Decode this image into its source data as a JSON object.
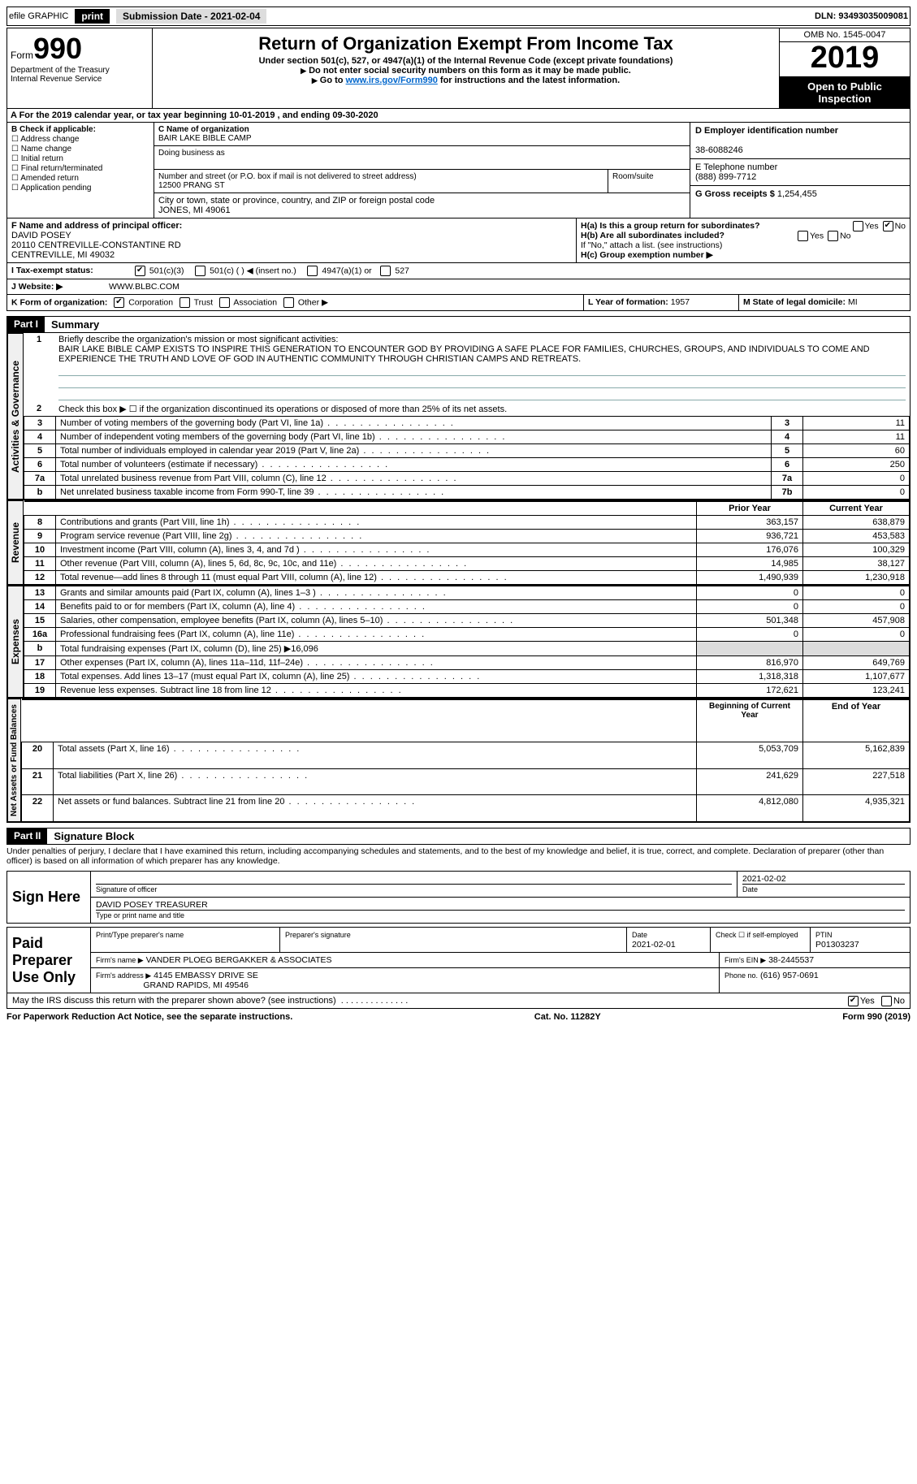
{
  "topbar": {
    "efile_label": "efile GRAPHIC",
    "print_btn": "print",
    "submission_label": "Submission Date - 2021-02-04",
    "dln": "DLN: 93493035009081"
  },
  "header": {
    "form_word": "Form",
    "form_num": "990",
    "dept1": "Department of the Treasury",
    "dept2": "Internal Revenue Service",
    "title": "Return of Organization Exempt From Income Tax",
    "subtitle": "Under section 501(c), 527, or 4947(a)(1) of the Internal Revenue Code (except private foundations)",
    "note1": "Do not enter social security numbers on this form as it may be made public.",
    "note2_pre": "Go to ",
    "note2_link": "www.irs.gov/Form990",
    "note2_post": " for instructions and the latest information.",
    "omb": "OMB No. 1545-0047",
    "year": "2019",
    "inspect": "Open to Public Inspection"
  },
  "period": "A For the 2019 calendar year, or tax year beginning 10-01-2019    , and ending 09-30-2020",
  "boxB": {
    "hdr": "B Check if applicable:",
    "items": [
      "Address change",
      "Name change",
      "Initial return",
      "Final return/terminated",
      "Amended return",
      "Application pending"
    ]
  },
  "boxC": {
    "name_lbl": "C Name of organization",
    "name_val": "BAIR LAKE BIBLE CAMP",
    "dba_lbl": "Doing business as",
    "addr_lbl": "Number and street (or P.O. box if mail is not delivered to street address)",
    "room_lbl": "Room/suite",
    "addr_val": "12500 PRANG ST",
    "city_lbl": "City or town, state or province, country, and ZIP or foreign postal code",
    "city_val": "JONES, MI  49061"
  },
  "boxD": {
    "lbl": "D Employer identification number",
    "val": "38-6088246"
  },
  "boxE": {
    "lbl": "E Telephone number",
    "val": "(888) 899-7712"
  },
  "boxG": {
    "lbl": "G Gross receipts $",
    "val": "1,254,455"
  },
  "boxF": {
    "lbl": "F Name and address of principal officer:",
    "name": "DAVID POSEY",
    "addr1": "20110 CENTREVILLE-CONSTANTINE RD",
    "addr2": "CENTREVILLE, MI  49032"
  },
  "boxH": {
    "a": "H(a)  Is this a group return for subordinates?",
    "b": "H(b)  Are all subordinates included?",
    "b_note": "If \"No,\" attach a list. (see instructions)",
    "c": "H(c)  Group exemption number ▶",
    "yes": "Yes",
    "no": "No"
  },
  "rowI": {
    "lbl": "I  Tax-exempt status:",
    "opts": [
      "501(c)(3)",
      "501(c) (  ) ◀ (insert no.)",
      "4947(a)(1) or",
      "527"
    ]
  },
  "rowJ": {
    "lbl": "J  Website: ▶",
    "val": "WWW.BLBC.COM"
  },
  "rowK": {
    "lbl": "K Form of organization:",
    "opts": [
      "Corporation",
      "Trust",
      "Association",
      "Other ▶"
    ]
  },
  "rowL": {
    "lbl": "L Year of formation:",
    "val": "1957"
  },
  "rowM": {
    "lbl": "M State of legal domicile:",
    "val": "MI"
  },
  "part1": {
    "hdr": "Part I",
    "title": "Summary"
  },
  "summary": {
    "l1_lbl": "Briefly describe the organization's mission or most significant activities:",
    "l1_text": "BAIR LAKE BIBLE CAMP EXISTS TO INSPIRE THIS GENERATION TO ENCOUNTER GOD BY PROVIDING A SAFE PLACE FOR FAMILIES, CHURCHES, GROUPS, AND INDIVIDUALS TO COME AND EXPERIENCE THE TRUTH AND LOVE OF GOD IN AUTHENTIC COMMUNITY THROUGH CHRISTIAN CAMPS AND RETREATS.",
    "l2": "Check this box ▶ ☐  if the organization discontinued its operations or disposed of more than 25% of its net assets.",
    "rows_gov": [
      {
        "n": "3",
        "t": "Number of voting members of the governing body (Part VI, line 1a)",
        "c": "3",
        "v": "11"
      },
      {
        "n": "4",
        "t": "Number of independent voting members of the governing body (Part VI, line 1b)",
        "c": "4",
        "v": "11"
      },
      {
        "n": "5",
        "t": "Total number of individuals employed in calendar year 2019 (Part V, line 2a)",
        "c": "5",
        "v": "60"
      },
      {
        "n": "6",
        "t": "Total number of volunteers (estimate if necessary)",
        "c": "6",
        "v": "250"
      },
      {
        "n": "7a",
        "t": "Total unrelated business revenue from Part VIII, column (C), line 12",
        "c": "7a",
        "v": "0"
      },
      {
        "n": "b",
        "t": "Net unrelated business taxable income from Form 990-T, line 39",
        "c": "7b",
        "v": "0"
      }
    ],
    "col_prior": "Prior Year",
    "col_current": "Current Year",
    "rev": [
      {
        "n": "8",
        "t": "Contributions and grants (Part VIII, line 1h)",
        "p": "363,157",
        "c": "638,879"
      },
      {
        "n": "9",
        "t": "Program service revenue (Part VIII, line 2g)",
        "p": "936,721",
        "c": "453,583"
      },
      {
        "n": "10",
        "t": "Investment income (Part VIII, column (A), lines 3, 4, and 7d )",
        "p": "176,076",
        "c": "100,329"
      },
      {
        "n": "11",
        "t": "Other revenue (Part VIII, column (A), lines 5, 6d, 8c, 9c, 10c, and 11e)",
        "p": "14,985",
        "c": "38,127"
      },
      {
        "n": "12",
        "t": "Total revenue—add lines 8 through 11 (must equal Part VIII, column (A), line 12)",
        "p": "1,490,939",
        "c": "1,230,918"
      }
    ],
    "exp": [
      {
        "n": "13",
        "t": "Grants and similar amounts paid (Part IX, column (A), lines 1–3 )",
        "p": "0",
        "c": "0"
      },
      {
        "n": "14",
        "t": "Benefits paid to or for members (Part IX, column (A), line 4)",
        "p": "0",
        "c": "0"
      },
      {
        "n": "15",
        "t": "Salaries, other compensation, employee benefits (Part IX, column (A), lines 5–10)",
        "p": "501,348",
        "c": "457,908"
      },
      {
        "n": "16a",
        "t": "Professional fundraising fees (Part IX, column (A), line 11e)",
        "p": "0",
        "c": "0"
      },
      {
        "n": "b",
        "t": "Total fundraising expenses (Part IX, column (D), line 25) ▶16,096",
        "p": "",
        "c": "",
        "shade": true
      },
      {
        "n": "17",
        "t": "Other expenses (Part IX, column (A), lines 11a–11d, 11f–24e)",
        "p": "816,970",
        "c": "649,769"
      },
      {
        "n": "18",
        "t": "Total expenses. Add lines 13–17 (must equal Part IX, column (A), line 25)",
        "p": "1,318,318",
        "c": "1,107,677"
      },
      {
        "n": "19",
        "t": "Revenue less expenses. Subtract line 18 from line 12",
        "p": "172,621",
        "c": "123,241"
      }
    ],
    "col_beg": "Beginning of Current Year",
    "col_end": "End of Year",
    "na": [
      {
        "n": "20",
        "t": "Total assets (Part X, line 16)",
        "p": "5,053,709",
        "c": "5,162,839"
      },
      {
        "n": "21",
        "t": "Total liabilities (Part X, line 26)",
        "p": "241,629",
        "c": "227,518"
      },
      {
        "n": "22",
        "t": "Net assets or fund balances. Subtract line 21 from line 20",
        "p": "4,812,080",
        "c": "4,935,321"
      }
    ],
    "side_gov": "Activities & Governance",
    "side_rev": "Revenue",
    "side_exp": "Expenses",
    "side_na": "Net Assets or Fund Balances"
  },
  "part2": {
    "hdr": "Part II",
    "title": "Signature Block",
    "decl": "Under penalties of perjury, I declare that I have examined this return, including accompanying schedules and statements, and to the best of my knowledge and belief, it is true, correct, and complete. Declaration of preparer (other than officer) is based on all information of which preparer has any knowledge."
  },
  "sign": {
    "here": "Sign Here",
    "sig_officer": "Signature of officer",
    "date_lbl": "Date",
    "date_val": "2021-02-02",
    "name": "DAVID POSEY TREASURER",
    "name_lbl": "Type or print name and title"
  },
  "paid": {
    "title": "Paid Preparer Use Only",
    "h1": "Print/Type preparer's name",
    "h2": "Preparer's signature",
    "h3": "Date",
    "h3v": "2021-02-01",
    "h4": "Check ☐ if self-employed",
    "h5": "PTIN",
    "h5v": "P01303237",
    "firm_lbl": "Firm's name   ▶",
    "firm": "VANDER PLOEG BERGAKKER & ASSOCIATES",
    "ein_lbl": "Firm's EIN ▶",
    "ein": "38-2445537",
    "addr_lbl": "Firm's address ▶",
    "addr1": "4145 EMBASSY DRIVE SE",
    "addr2": "GRAND RAPIDS, MI  49546",
    "phone_lbl": "Phone no.",
    "phone": "(616) 957-0691"
  },
  "discuss": {
    "q": "May the IRS discuss this return with the preparer shown above? (see instructions)",
    "yes": "Yes",
    "no": "No"
  },
  "footer": {
    "left": "For Paperwork Reduction Act Notice, see the separate instructions.",
    "mid": "Cat. No. 11282Y",
    "right": "Form 990 (2019)"
  }
}
